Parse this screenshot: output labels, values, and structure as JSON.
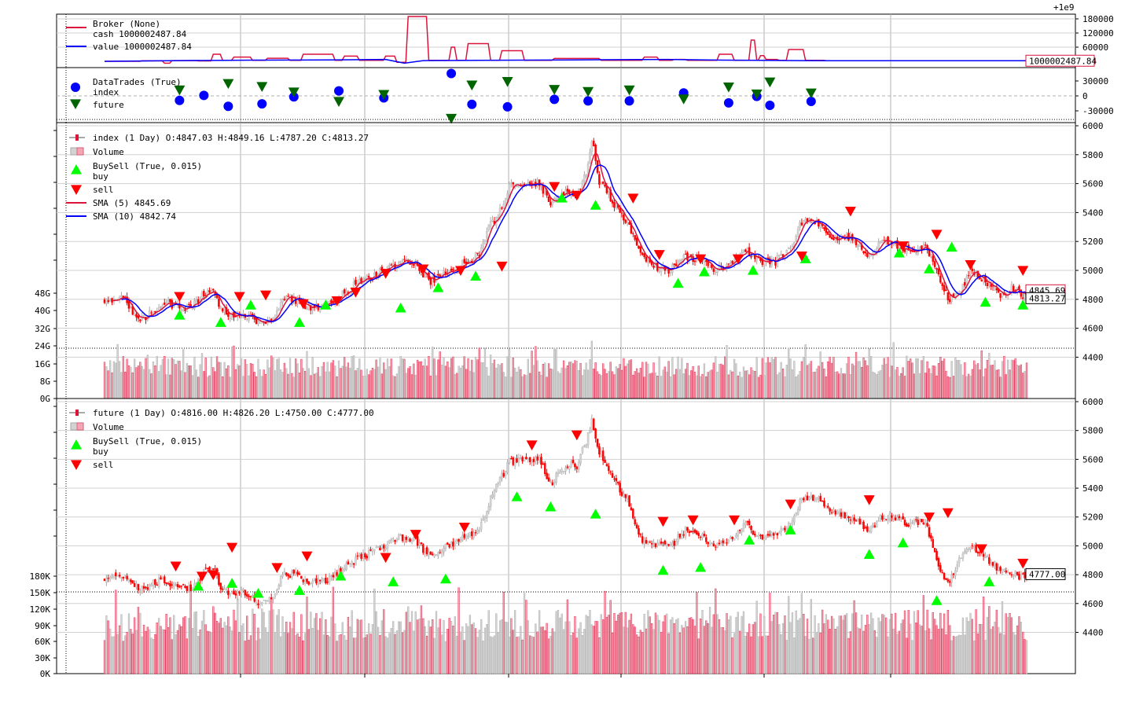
{
  "chart_data": [
    {
      "type": "line",
      "panel": "broker",
      "exponent_label": "+1e9",
      "legend": [
        {
          "label": "Broker (None)",
          "color": ""
        },
        {
          "label": "cash 1000002487.84",
          "color": "#dc143c"
        },
        {
          "label": "value 1000002487.84",
          "color": "#0000ff"
        }
      ],
      "ylim": [
        0,
        180000
      ],
      "yticks": [
        {
          "value": 60000,
          "label": "60000"
        },
        {
          "value": 120000,
          "label": "120000"
        },
        {
          "value": 180000,
          "label": "180000"
        }
      ],
      "last_value_label": "1000002487.84",
      "cash_steps": [
        [
          0,
          0
        ],
        [
          20,
          2000
        ],
        [
          32,
          -8000
        ],
        [
          36,
          3000
        ],
        [
          50,
          1500
        ],
        [
          58,
          30000
        ],
        [
          63,
          4000
        ],
        [
          69,
          18000
        ],
        [
          79,
          4000
        ],
        [
          87,
          13000
        ],
        [
          99,
          4000
        ],
        [
          106,
          30000
        ],
        [
          123,
          4000
        ],
        [
          128,
          22000
        ],
        [
          136,
          4000
        ],
        [
          150,
          22000
        ],
        [
          156,
          -4000
        ],
        [
          162,
          190000
        ],
        [
          173,
          4000
        ],
        [
          185,
          60000
        ],
        [
          188,
          4000
        ],
        [
          194,
          75000
        ],
        [
          206,
          4000
        ],
        [
          212,
          45000
        ],
        [
          224,
          4000
        ],
        [
          240,
          12000
        ],
        [
          265,
          4000
        ],
        [
          288,
          18000
        ],
        [
          296,
          4000
        ],
        [
          304,
          8000
        ],
        [
          311,
          4000
        ],
        [
          328,
          30000
        ],
        [
          336,
          4000
        ],
        [
          345,
          90000
        ],
        [
          348,
          4000
        ],
        [
          350,
          24000
        ],
        [
          353,
          8000
        ],
        [
          360,
          4000
        ],
        [
          365,
          50000
        ],
        [
          374,
          4000
        ],
        [
          385,
          2487
        ]
      ],
      "value_line": [
        [
          0,
          0
        ],
        [
          40,
          3000
        ],
        [
          80,
          5000
        ],
        [
          120,
          6000
        ],
        [
          150,
          8000
        ],
        [
          160,
          -8000
        ],
        [
          170,
          3000
        ],
        [
          200,
          4000
        ],
        [
          250,
          6000
        ],
        [
          300,
          8000
        ],
        [
          330,
          5000
        ],
        [
          350,
          4000
        ],
        [
          385,
          2487
        ]
      ]
    },
    {
      "type": "scatter",
      "panel": "datatrades",
      "legend": [
        {
          "label": "DataTrades (True)",
          "color": ""
        },
        {
          "label": "index",
          "color": "#0000ff"
        },
        {
          "label": "future",
          "color": "#006400"
        }
      ],
      "ylim": [
        -45000,
        45000
      ],
      "yticks": [
        {
          "value": -30000,
          "label": "-30000"
        },
        {
          "value": 0,
          "label": "0"
        },
        {
          "value": 30000,
          "label": "30000"
        }
      ],
      "index_points": [
        [
          40,
          -9000
        ],
        [
          53,
          1000
        ],
        [
          66,
          -21000
        ],
        [
          84,
          -16000
        ],
        [
          101,
          -2000
        ],
        [
          125,
          10000
        ],
        [
          149,
          -4000
        ],
        [
          185,
          45000
        ],
        [
          196,
          -17000
        ],
        [
          215,
          -22000
        ],
        [
          240,
          -7000
        ],
        [
          258,
          -10000
        ],
        [
          280,
          -10000
        ],
        [
          309,
          6000
        ],
        [
          333,
          -14000
        ],
        [
          348,
          -1000
        ],
        [
          355,
          -19000
        ],
        [
          377,
          -11000
        ]
      ],
      "future_points": [
        [
          40,
          12000
        ],
        [
          66,
          25000
        ],
        [
          84,
          19000
        ],
        [
          101,
          8000
        ],
        [
          125,
          -11000
        ],
        [
          149,
          3000
        ],
        [
          185,
          -45000
        ],
        [
          196,
          22000
        ],
        [
          215,
          29000
        ],
        [
          240,
          13000
        ],
        [
          258,
          9000
        ],
        [
          280,
          12000
        ],
        [
          309,
          -6000
        ],
        [
          333,
          18000
        ],
        [
          348,
          4000
        ],
        [
          355,
          28000
        ],
        [
          377,
          6000
        ]
      ]
    },
    {
      "type": "candlestick",
      "panel": "index",
      "legend": [
        {
          "label": "index (1 Day) O:4847.03 H:4849.16 L:4787.20 C:4813.27",
          "color": "#dc143c"
        },
        {
          "label": "Volume",
          "color": "#f4a6b4"
        },
        {
          "label": "BuySell (True, 0.015)",
          "color": ""
        },
        {
          "label": "buy",
          "color": "#00ff00"
        },
        {
          "label": "sell",
          "color": "#ff0000"
        },
        {
          "label": "SMA (5) 4845.69",
          "color": "#dc143c"
        },
        {
          "label": "SMA (10) 4842.74",
          "color": "#0000ff"
        }
      ],
      "ylim": [
        4250,
        6000
      ],
      "yticks": [
        4400,
        4600,
        4800,
        5000,
        5200,
        5400,
        5600,
        5800,
        6000
      ],
      "volume_axis": [
        "0G",
        "8G",
        "16G",
        "24G",
        "32G",
        "40G",
        "48G"
      ],
      "volume_max": 110,
      "last_value_label": "4813.27",
      "sma5_label": "4845.69",
      "anchors": [
        [
          0,
          4790
        ],
        [
          10,
          4830
        ],
        [
          18,
          4650
        ],
        [
          24,
          4700
        ],
        [
          30,
          4770
        ],
        [
          38,
          4760
        ],
        [
          46,
          4740
        ],
        [
          52,
          4820
        ],
        [
          58,
          4850
        ],
        [
          62,
          4740
        ],
        [
          68,
          4680
        ],
        [
          75,
          4700
        ],
        [
          82,
          4640
        ],
        [
          90,
          4660
        ],
        [
          96,
          4820
        ],
        [
          103,
          4790
        ],
        [
          110,
          4740
        ],
        [
          118,
          4760
        ],
        [
          124,
          4800
        ],
        [
          132,
          4890
        ],
        [
          140,
          4940
        ],
        [
          150,
          5010
        ],
        [
          158,
          5060
        ],
        [
          166,
          5040
        ],
        [
          174,
          4920
        ],
        [
          180,
          4980
        ],
        [
          190,
          5040
        ],
        [
          200,
          5110
        ],
        [
          205,
          5300
        ],
        [
          210,
          5380
        ],
        [
          216,
          5580
        ],
        [
          224,
          5580
        ],
        [
          232,
          5610
        ],
        [
          238,
          5450
        ],
        [
          242,
          5530
        ],
        [
          248,
          5550
        ],
        [
          252,
          5510
        ],
        [
          258,
          5720
        ],
        [
          260,
          5910
        ],
        [
          264,
          5620
        ],
        [
          272,
          5460
        ],
        [
          280,
          5300
        ],
        [
          286,
          5100
        ],
        [
          294,
          5020
        ],
        [
          302,
          5000
        ],
        [
          310,
          5100
        ],
        [
          318,
          5070
        ],
        [
          326,
          5000
        ],
        [
          334,
          5040
        ],
        [
          342,
          5150
        ],
        [
          350,
          5060
        ],
        [
          358,
          5060
        ],
        [
          366,
          5150
        ],
        [
          372,
          5340
        ],
        [
          380,
          5340
        ],
        [
          388,
          5240
        ],
        [
          398,
          5220
        ],
        [
          408,
          5110
        ],
        [
          416,
          5210
        ],
        [
          424,
          5170
        ],
        [
          432,
          5130
        ],
        [
          438,
          5180
        ],
        [
          444,
          5000
        ],
        [
          450,
          4800
        ],
        [
          456,
          4840
        ],
        [
          462,
          5000
        ],
        [
          470,
          4930
        ],
        [
          478,
          4820
        ],
        [
          484,
          4880
        ],
        [
          492,
          4813
        ]
      ],
      "buy_markers": [
        [
          40,
          4690
        ],
        [
          62,
          4640
        ],
        [
          78,
          4760
        ],
        [
          104,
          4640
        ],
        [
          118,
          4760
        ],
        [
          158,
          4740
        ],
        [
          178,
          4880
        ],
        [
          198,
          4960
        ],
        [
          244,
          5500
        ],
        [
          262,
          5450
        ],
        [
          306,
          4910
        ],
        [
          320,
          4990
        ],
        [
          346,
          5000
        ],
        [
          374,
          5080
        ],
        [
          424,
          5120
        ],
        [
          440,
          5010
        ],
        [
          452,
          5160
        ],
        [
          470,
          4780
        ],
        [
          490,
          4760
        ]
      ],
      "sell_markers": [
        [
          40,
          4820
        ],
        [
          72,
          4820
        ],
        [
          86,
          4830
        ],
        [
          106,
          4770
        ],
        [
          124,
          4790
        ],
        [
          134,
          4850
        ],
        [
          150,
          4980
        ],
        [
          170,
          5010
        ],
        [
          190,
          5000
        ],
        [
          212,
          5030
        ],
        [
          240,
          5580
        ],
        [
          252,
          5520
        ],
        [
          282,
          5500
        ],
        [
          296,
          5110
        ],
        [
          318,
          5080
        ],
        [
          338,
          5080
        ],
        [
          372,
          5100
        ],
        [
          398,
          5410
        ],
        [
          426,
          5170
        ],
        [
          444,
          5250
        ],
        [
          462,
          5040
        ],
        [
          490,
          5000
        ]
      ]
    },
    {
      "type": "candlestick",
      "panel": "future",
      "legend": [
        {
          "label": "future (1 Day) O:4816.00 H:4826.20 L:4750.00 C:4777.00",
          "color": "#dc143c"
        },
        {
          "label": "Volume",
          "color": "#f4a6b4"
        },
        {
          "label": "BuySell (True, 0.015)",
          "color": ""
        },
        {
          "label": "buy",
          "color": "#00ff00"
        },
        {
          "label": "sell",
          "color": "#ff0000"
        }
      ],
      "ylim": [
        4250,
        6000
      ],
      "yticks": [
        4400,
        4600,
        4800,
        5000,
        5200,
        5400,
        5600,
        5800,
        6000
      ],
      "volume_axis": [
        "0K",
        "30K",
        "60K",
        "90K",
        "120K",
        "150K",
        "180K"
      ],
      "volume_max": 1000,
      "last_value_label": "4777.00",
      "anchors": [
        [
          0,
          4770
        ],
        [
          10,
          4800
        ],
        [
          18,
          4700
        ],
        [
          24,
          4720
        ],
        [
          30,
          4760
        ],
        [
          38,
          4740
        ],
        [
          46,
          4700
        ],
        [
          52,
          4800
        ],
        [
          58,
          4860
        ],
        [
          62,
          4700
        ],
        [
          68,
          4660
        ],
        [
          75,
          4680
        ],
        [
          82,
          4600
        ],
        [
          90,
          4640
        ],
        [
          96,
          4820
        ],
        [
          103,
          4790
        ],
        [
          110,
          4740
        ],
        [
          118,
          4760
        ],
        [
          124,
          4800
        ],
        [
          132,
          4890
        ],
        [
          140,
          4940
        ],
        [
          150,
          5010
        ],
        [
          158,
          5060
        ],
        [
          166,
          5040
        ],
        [
          174,
          4920
        ],
        [
          180,
          4980
        ],
        [
          190,
          5040
        ],
        [
          200,
          5110
        ],
        [
          205,
          5300
        ],
        [
          210,
          5430
        ],
        [
          216,
          5580
        ],
        [
          224,
          5590
        ],
        [
          232,
          5620
        ],
        [
          238,
          5420
        ],
        [
          242,
          5500
        ],
        [
          248,
          5570
        ],
        [
          252,
          5560
        ],
        [
          258,
          5760
        ],
        [
          260,
          5870
        ],
        [
          264,
          5660
        ],
        [
          272,
          5450
        ],
        [
          280,
          5300
        ],
        [
          286,
          5050
        ],
        [
          294,
          5020
        ],
        [
          302,
          5000
        ],
        [
          310,
          5110
        ],
        [
          318,
          5080
        ],
        [
          326,
          5000
        ],
        [
          334,
          5040
        ],
        [
          342,
          5150
        ],
        [
          350,
          5060
        ],
        [
          358,
          5080
        ],
        [
          366,
          5150
        ],
        [
          372,
          5330
        ],
        [
          380,
          5320
        ],
        [
          388,
          5240
        ],
        [
          398,
          5190
        ],
        [
          408,
          5120
        ],
        [
          416,
          5210
        ],
        [
          424,
          5170
        ],
        [
          432,
          5150
        ],
        [
          438,
          5180
        ],
        [
          444,
          4900
        ],
        [
          450,
          4740
        ],
        [
          456,
          4900
        ],
        [
          462,
          4990
        ],
        [
          470,
          4920
        ],
        [
          478,
          4830
        ],
        [
          484,
          4810
        ],
        [
          492,
          4777
        ]
      ],
      "buy_markers": [
        [
          50,
          4720
        ],
        [
          68,
          4740
        ],
        [
          82,
          4670
        ],
        [
          104,
          4690
        ],
        [
          126,
          4790
        ],
        [
          154,
          4750
        ],
        [
          182,
          4770
        ],
        [
          220,
          5340
        ],
        [
          238,
          5270
        ],
        [
          262,
          5220
        ],
        [
          298,
          4830
        ],
        [
          318,
          4850
        ],
        [
          344,
          5040
        ],
        [
          366,
          5110
        ],
        [
          408,
          4940
        ],
        [
          426,
          5020
        ],
        [
          444,
          4620
        ],
        [
          472,
          4750
        ]
      ],
      "sell_markers": [
        [
          38,
          4860
        ],
        [
          52,
          4790
        ],
        [
          58,
          4800
        ],
        [
          68,
          4990
        ],
        [
          92,
          4850
        ],
        [
          108,
          4930
        ],
        [
          150,
          4920
        ],
        [
          166,
          5080
        ],
        [
          192,
          5130
        ],
        [
          228,
          5700
        ],
        [
          252,
          5770
        ],
        [
          298,
          5170
        ],
        [
          314,
          5180
        ],
        [
          336,
          5180
        ],
        [
          366,
          5290
        ],
        [
          408,
          5320
        ],
        [
          440,
          5200
        ],
        [
          450,
          5230
        ],
        [
          468,
          4980
        ],
        [
          490,
          4880
        ]
      ]
    }
  ]
}
